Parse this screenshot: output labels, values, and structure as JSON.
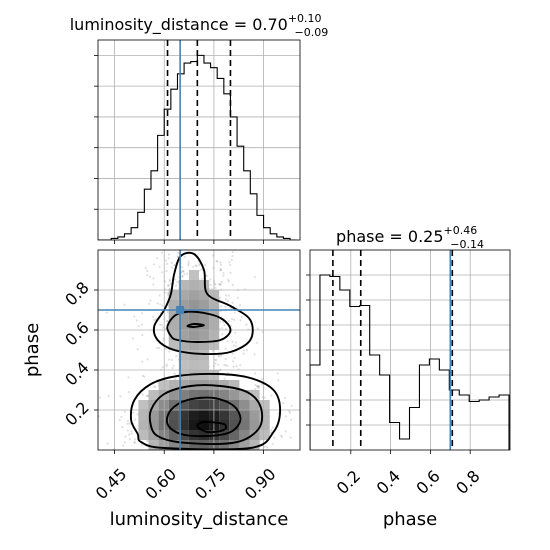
{
  "chart_data": [
    {
      "type": "histogram",
      "panel": "luminosity_distance-marginal",
      "title": {
        "param": "luminosity_distance",
        "value": "0.70",
        "plus": "+0.10",
        "minus": "−0.09"
      },
      "xlim": [
        0.4,
        1.01
      ],
      "bin_edges": [
        0.4,
        0.42,
        0.44,
        0.46,
        0.48,
        0.5,
        0.52,
        0.54,
        0.56,
        0.58,
        0.6,
        0.62,
        0.64,
        0.66,
        0.68,
        0.7,
        0.72,
        0.74,
        0.76,
        0.78,
        0.8,
        0.82,
        0.84,
        0.86,
        0.88,
        0.9,
        0.92,
        0.94,
        0.96,
        0.98,
        1.0
      ],
      "counts": [
        0,
        0,
        1,
        2,
        4,
        8,
        18,
        33,
        45,
        68,
        85,
        98,
        108,
        115,
        116,
        120,
        115,
        112,
        105,
        95,
        80,
        61,
        45,
        30,
        16,
        8,
        4,
        2,
        1,
        0
      ],
      "ylim": [
        0,
        130
      ],
      "quantiles": [
        0.61,
        0.7,
        0.8
      ],
      "truth": 0.648
    },
    {
      "type": "histogram",
      "panel": "phase-marginal",
      "title": {
        "param": "phase",
        "value": "0.25",
        "plus": "+0.46",
        "minus": "−0.14"
      },
      "xticks": [
        0.2,
        0.4,
        0.6,
        0.8
      ],
      "xlim": [
        -0.005,
        1.0
      ],
      "bin_edges": [
        -0.005,
        0.045,
        0.095,
        0.145,
        0.195,
        0.245,
        0.295,
        0.345,
        0.395,
        0.445,
        0.495,
        0.545,
        0.595,
        0.645,
        0.695,
        0.745,
        0.795,
        0.845,
        0.895,
        0.945,
        0.995
      ],
      "counts": [
        170,
        350,
        347,
        320,
        287,
        289,
        190,
        150,
        55,
        22,
        85,
        170,
        182,
        160,
        120,
        110,
        97,
        100,
        106,
        110
      ],
      "ylim": [
        0,
        400
      ],
      "quantiles": [
        0.11,
        0.25,
        0.71
      ],
      "truth": 0.7
    },
    {
      "type": "2d-density",
      "panel": "luminosity_distance-vs-phase",
      "xlabel": "luminosity_distance",
      "ylabel": "phase",
      "xticks": [
        0.45,
        0.6,
        0.75,
        0.9
      ],
      "yticks": [
        0.2,
        0.4,
        0.6,
        0.8
      ],
      "xlim": [
        0.4,
        1.01
      ],
      "ylim": [
        0.0,
        1.0
      ],
      "truth": [
        0.648,
        0.7
      ],
      "modes": [
        {
          "center": [
            0.72,
            0.14
          ],
          "spread": [
            0.11,
            0.12
          ]
        },
        {
          "center": [
            0.69,
            0.66
          ],
          "spread": [
            0.07,
            0.17
          ]
        }
      ],
      "contour_levels": [
        {
          "level": "outer",
          "lines": [
            [
              [
                0.52,
                0.08
              ],
              [
                0.5,
                0.15
              ],
              [
                0.51,
                0.25
              ],
              [
                0.56,
                0.33
              ],
              [
                0.64,
                0.37
              ],
              [
                0.76,
                0.38
              ],
              [
                0.86,
                0.36
              ],
              [
                0.93,
                0.3
              ],
              [
                0.95,
                0.2
              ],
              [
                0.93,
                0.09
              ],
              [
                0.86,
                0.01
              ],
              [
                0.6,
                0.01
              ],
              [
                0.53,
                0.04
              ],
              [
                0.52,
                0.08
              ]
            ],
            [
              [
                0.58,
                0.55
              ],
              [
                0.57,
                0.62
              ],
              [
                0.6,
                0.7
              ],
              [
                0.62,
                0.78
              ],
              [
                0.63,
                0.88
              ],
              [
                0.65,
                0.97
              ],
              [
                0.69,
                0.98
              ],
              [
                0.72,
                0.9
              ],
              [
                0.73,
                0.78
              ],
              [
                0.8,
                0.72
              ],
              [
                0.86,
                0.65
              ],
              [
                0.86,
                0.55
              ],
              [
                0.8,
                0.49
              ],
              [
                0.72,
                0.48
              ],
              [
                0.63,
                0.5
              ],
              [
                0.58,
                0.55
              ]
            ]
          ]
        },
        {
          "level": "middle",
          "lines": [
            [
              [
                0.56,
                0.12
              ],
              [
                0.56,
                0.2
              ],
              [
                0.6,
                0.28
              ],
              [
                0.68,
                0.32
              ],
              [
                0.77,
                0.32
              ],
              [
                0.85,
                0.29
              ],
              [
                0.89,
                0.22
              ],
              [
                0.89,
                0.12
              ],
              [
                0.84,
                0.05
              ],
              [
                0.76,
                0.03
              ],
              [
                0.64,
                0.04
              ],
              [
                0.58,
                0.07
              ],
              [
                0.56,
                0.12
              ]
            ],
            [
              [
                0.62,
                0.57
              ],
              [
                0.61,
                0.62
              ],
              [
                0.64,
                0.68
              ],
              [
                0.7,
                0.69
              ],
              [
                0.77,
                0.66
              ],
              [
                0.8,
                0.6
              ],
              [
                0.77,
                0.55
              ],
              [
                0.7,
                0.54
              ],
              [
                0.64,
                0.55
              ],
              [
                0.62,
                0.57
              ]
            ]
          ]
        },
        {
          "level": "inner",
          "lines": [
            [
              [
                0.61,
                0.13
              ],
              [
                0.62,
                0.2
              ],
              [
                0.67,
                0.25
              ],
              [
                0.75,
                0.26
              ],
              [
                0.81,
                0.22
              ],
              [
                0.83,
                0.15
              ],
              [
                0.8,
                0.09
              ],
              [
                0.73,
                0.07
              ],
              [
                0.65,
                0.08
              ],
              [
                0.61,
                0.13
              ]
            ],
            [
              [
                0.67,
                0.62
              ],
              [
                0.69,
                0.63
              ],
              [
                0.72,
                0.624
              ],
              [
                0.69,
                0.615
              ],
              [
                0.67,
                0.62
              ]
            ]
          ]
        },
        {
          "level": "core",
          "lines": [
            [
              [
                0.7,
                0.12
              ],
              [
                0.72,
                0.14
              ],
              [
                0.78,
                0.13
              ],
              [
                0.78,
                0.1
              ],
              [
                0.73,
                0.09
              ],
              [
                0.7,
                0.12
              ]
            ]
          ]
        }
      ]
    }
  ]
}
